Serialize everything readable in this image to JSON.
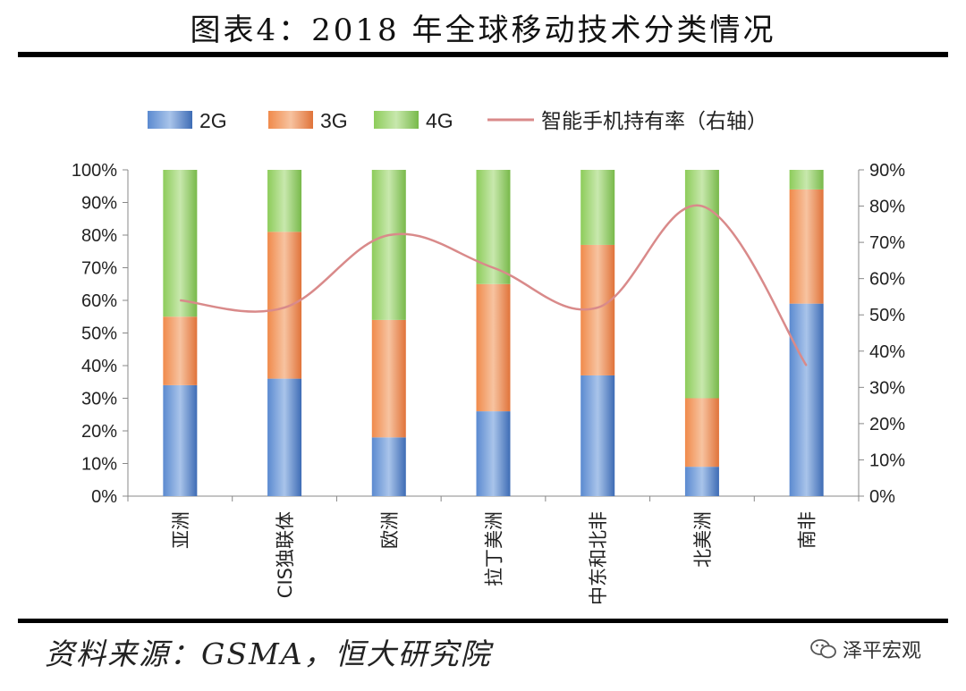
{
  "title": "图表4：2018 年全球移动技术分类情况",
  "source": "资料来源：GSMA，恒大研究院",
  "watermark": "泽平宏观",
  "watermark_icon": "wechat-icon",
  "chart_data": {
    "type": "bar",
    "stacked": true,
    "categories": [
      "亚洲",
      "CIS独联体",
      "欧洲",
      "拉丁美洲",
      "中东和北非",
      "北美洲",
      "南非"
    ],
    "series": [
      {
        "name": "2G",
        "values": [
          34,
          36,
          18,
          26,
          37,
          9,
          59
        ],
        "color": "#4f7fc4"
      },
      {
        "name": "3G",
        "values": [
          21,
          45,
          36,
          39,
          40,
          21,
          35
        ],
        "color": "#f08a4b"
      },
      {
        "name": "4G",
        "values": [
          45,
          19,
          46,
          35,
          23,
          70,
          6
        ],
        "color": "#8dcc5a"
      }
    ],
    "line": {
      "name": "智能手机持有率（右轴）",
      "values": [
        54,
        52,
        72,
        63,
        52,
        80,
        36
      ],
      "color": "#d98a8a",
      "axis": "right"
    },
    "yleft": {
      "ticks": [
        "0%",
        "10%",
        "20%",
        "30%",
        "40%",
        "50%",
        "60%",
        "70%",
        "80%",
        "90%",
        "100%"
      ],
      "range": [
        0,
        100
      ]
    },
    "yright": {
      "ticks": [
        "0%",
        "10%",
        "20%",
        "30%",
        "40%",
        "50%",
        "60%",
        "70%",
        "80%",
        "90%"
      ],
      "range": [
        0,
        90
      ]
    },
    "legend": "top",
    "grid": false
  }
}
